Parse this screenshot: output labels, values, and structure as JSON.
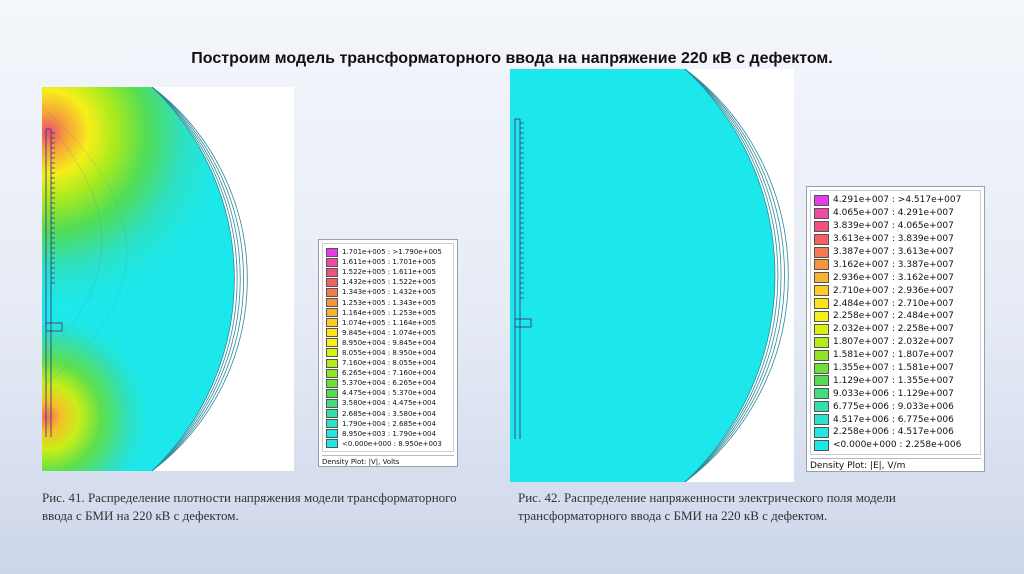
{
  "slide": {
    "title": "Построим модель трансформаторного ввода на напряжение 220 кВ с дефектом."
  },
  "figure41": {
    "caption_line1": "Рис. 41. Распределение плотности напряжения модели трансформаторного",
    "caption_line2": "ввода с БМИ на 220 кВ с дефектом.",
    "legend": {
      "footer": "Density Plot: |V|, Volts",
      "entries": [
        {
          "label": "1.701e+005 : >1.790e+005",
          "color": "#e53de5"
        },
        {
          "label": "1.611e+005 : 1.701e+005",
          "color": "#ee4aa6"
        },
        {
          "label": "1.522e+005 : 1.611e+005",
          "color": "#f0527e"
        },
        {
          "label": "1.432e+005 : 1.522e+005",
          "color": "#f2605f"
        },
        {
          "label": "1.343e+005 : 1.432e+005",
          "color": "#f27a4e"
        },
        {
          "label": "1.253e+005 : 1.343e+005",
          "color": "#f5963f"
        },
        {
          "label": "1.164e+005 : 1.253e+005",
          "color": "#f8b132"
        },
        {
          "label": "1.074e+005 : 1.164e+005",
          "color": "#fbcb26"
        },
        {
          "label": "9.845e+004 : 1.074e+005",
          "color": "#fde21c"
        },
        {
          "label": "8.950e+004 : 9.845e+004",
          "color": "#f6f015"
        },
        {
          "label": "8.055e+004 : 8.950e+004",
          "color": "#d9f015"
        },
        {
          "label": "7.160e+004 : 8.055e+004",
          "color": "#b3ec1a"
        },
        {
          "label": "6.265e+004 : 7.160e+004",
          "color": "#8ee623"
        },
        {
          "label": "5.370e+004 : 6.265e+004",
          "color": "#6be235"
        },
        {
          "label": "4.475e+004 : 5.370e+004",
          "color": "#52dd55"
        },
        {
          "label": "3.580e+004 : 4.475e+004",
          "color": "#43dc80"
        },
        {
          "label": "2.685e+004 : 3.580e+004",
          "color": "#36deab"
        },
        {
          "label": "1.790e+004 : 2.685e+004",
          "color": "#2de2cd"
        },
        {
          "label": "8.950e+003 : 1.790e+004",
          "color": "#24e6e2"
        },
        {
          "label": "<0.000e+000 : 8.950e+003",
          "color": "#1ce8ec"
        }
      ]
    }
  },
  "figure42": {
    "caption_line1": "Рис. 42. Распределение напряженности электрического поля модели",
    "caption_line2": "трансформаторного ввода с БМИ на 220 кВ с дефектом.",
    "legend": {
      "footer": "Density Plot: |E|, V/m",
      "entries": [
        {
          "label": "4.291e+007 : >4.517e+007",
          "color": "#e53de5"
        },
        {
          "label": "4.065e+007 : 4.291e+007",
          "color": "#ee4aa6"
        },
        {
          "label": "3.839e+007 : 4.065e+007",
          "color": "#f0527e"
        },
        {
          "label": "3.613e+007 : 3.839e+007",
          "color": "#f2605f"
        },
        {
          "label": "3.387e+007 : 3.613e+007",
          "color": "#f27a4e"
        },
        {
          "label": "3.162e+007 : 3.387e+007",
          "color": "#f5963f"
        },
        {
          "label": "2.936e+007 : 3.162e+007",
          "color": "#f8b132"
        },
        {
          "label": "2.710e+007 : 2.936e+007",
          "color": "#fbcb26"
        },
        {
          "label": "2.484e+007 : 2.710e+007",
          "color": "#fde21c"
        },
        {
          "label": "2.258e+007 : 2.484e+007",
          "color": "#f6f015"
        },
        {
          "label": "2.032e+007 : 2.258e+007",
          "color": "#d9f015"
        },
        {
          "label": "1.807e+007 : 2.032e+007",
          "color": "#b3ec1a"
        },
        {
          "label": "1.581e+007 : 1.807e+007",
          "color": "#8ee623"
        },
        {
          "label": "1.355e+007 : 1.581e+007",
          "color": "#6be235"
        },
        {
          "label": "1.129e+007 : 1.355e+007",
          "color": "#52dd55"
        },
        {
          "label": "9.033e+006 : 1.129e+007",
          "color": "#43dc80"
        },
        {
          "label": "6.775e+006 : 9.033e+006",
          "color": "#36deab"
        },
        {
          "label": "4.517e+006 : 6.775e+006",
          "color": "#2de2cd"
        },
        {
          "label": "2.258e+006 : 4.517e+006",
          "color": "#24e6e2"
        },
        {
          "label": "<0.000e+000 : 2.258e+006",
          "color": "#1ce8ec"
        }
      ]
    }
  }
}
